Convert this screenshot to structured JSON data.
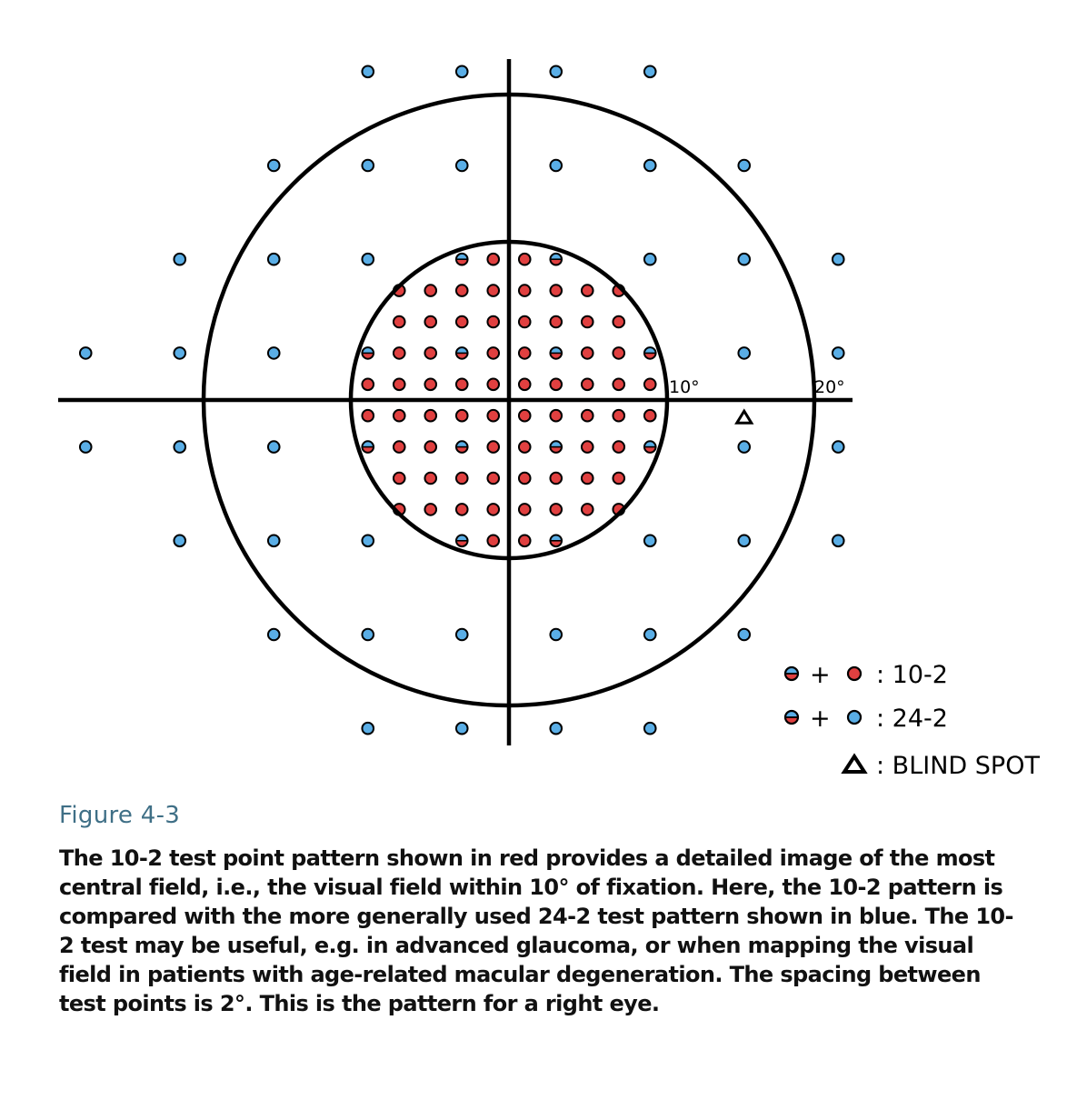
{
  "diagram": {
    "inner_ring_label": "10°",
    "outer_ring_label": "20°",
    "colors": {
      "red": "#e04040",
      "blue": "#5aaee6",
      "stroke": "#000000"
    },
    "test_pattern_10_2": {
      "spacing_deg": 2,
      "rows_y_deg": [
        9,
        7,
        5,
        3,
        1,
        -1,
        -3,
        -5,
        -7,
        -9
      ],
      "x_deg": [
        -9,
        -7,
        -5,
        -3,
        -1,
        1,
        3,
        5,
        7,
        9
      ]
    },
    "test_pattern_24_2": {
      "spacing_deg": 6,
      "rows_y_deg": [
        21,
        15,
        9,
        3,
        -3,
        -9,
        -15,
        -21
      ]
    },
    "blind_spot_deg": {
      "x": 15,
      "y": -1
    }
  },
  "legend": {
    "items": [
      {
        "text": ": 10-2",
        "symbol": "red"
      },
      {
        "text": ": 24-2",
        "symbol": "blue"
      },
      {
        "text": ": BLIND SPOT",
        "symbol": "triangle"
      }
    ],
    "plus": "+"
  },
  "caption": {
    "title": "Figure 4-3",
    "text": "The 10-2 test point pattern shown in red provides a detailed image of the most central field, i.e., the visual field within 10° of fixation. Here, the 10-2 pattern is compared with the more generally used 24-2 test pattern shown in blue. The 10-2 test may be useful, e.g. in advanced glaucoma, or when mapping the visual field in patients with age-related macular degeneration. The spacing between test points is 2°. This is the pattern for a right eye."
  }
}
